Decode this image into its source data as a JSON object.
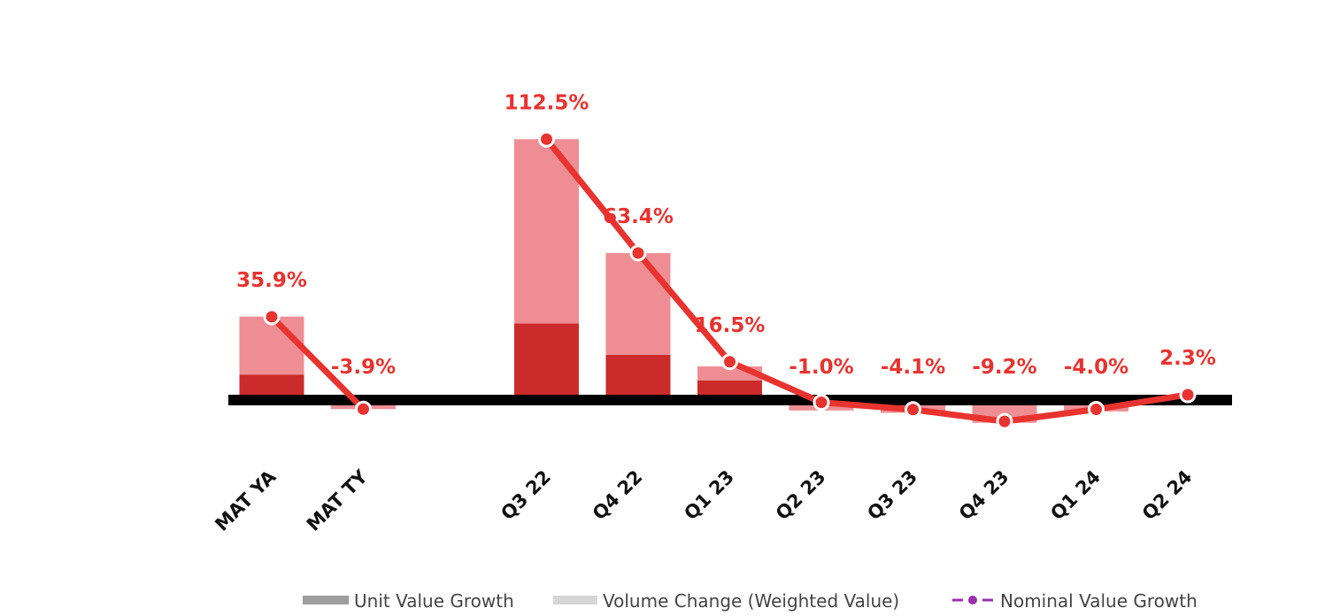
{
  "chart_data": {
    "type": "bar",
    "categories": [
      "MAT YA",
      "MAT TY",
      "",
      "Q3 22",
      "Q4 22",
      "Q1 23",
      "Q2 23",
      "Q3 23",
      "Q4 23",
      "Q1 24",
      "Q2 24"
    ],
    "series": [
      {
        "name": "Unit Value Growth",
        "kind": "stacked-bar",
        "color": "#cc2b2b",
        "values": [
          11.0,
          0,
          null,
          33.0,
          19.5,
          8.5,
          1.7,
          1.2,
          -0.5,
          -0.7,
          0.3
        ]
      },
      {
        "name": "Volume Change (Weighted Value)",
        "kind": "stacked-bar",
        "color": "#ee8e94",
        "values": [
          25.0,
          -3.9,
          null,
          79.5,
          43.9,
          6.0,
          -4.5,
          -5.5,
          -9.3,
          -4.2,
          0.6
        ]
      },
      {
        "name": "Nominal Value Growth",
        "kind": "line",
        "color": "#e8332f",
        "values": [
          35.9,
          -3.9,
          null,
          112.5,
          63.4,
          16.5,
          -1.0,
          -4.1,
          -9.2,
          -4.0,
          2.3
        ]
      }
    ],
    "data_labels": [
      "35.9%",
      "-3.9%",
      "",
      "112.5%",
      "63.4%",
      "16.5%",
      "-1.0%",
      "-4.1%",
      "-9.2%",
      "-4.0%",
      "2.3%"
    ],
    "ylim": [
      -30,
      150
    ],
    "grid": false,
    "legend_position": "bottom-right",
    "legend": [
      {
        "label": "Unit Value Growth",
        "color": "#9e9e9e",
        "marker": "bar"
      },
      {
        "label": "Volume Change (Weighted Value)",
        "color": "#d6d6d6",
        "marker": "bar"
      },
      {
        "label": "Nominal Value Growth",
        "color": "#9b2fae",
        "marker": "dash-dot"
      }
    ],
    "colors": {
      "label_text": "#e8332f",
      "zero_line": "#000000",
      "marker_outline": "#ffffff"
    }
  }
}
